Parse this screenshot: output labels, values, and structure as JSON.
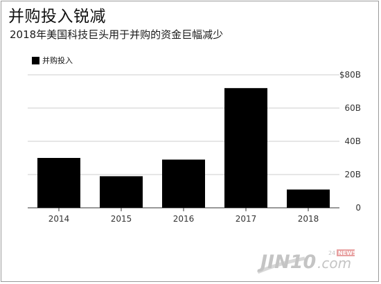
{
  "title": "并购投入锐减",
  "subtitle": "2018年美国科技巨头用于并购的资金巨幅减少",
  "legend": {
    "label": "并购投入",
    "color": "#000000"
  },
  "watermark": {
    "brand": "JIN10",
    "suffix": ".com",
    "tag_num": "24",
    "tag_word": "NEWS"
  },
  "chart_data": {
    "type": "bar",
    "categories": [
      "2014",
      "2015",
      "2016",
      "2017",
      "2018"
    ],
    "series": [
      {
        "name": "并购投入",
        "values": [
          30,
          19,
          29,
          72,
          11
        ]
      }
    ],
    "ylim": [
      0,
      80
    ],
    "yticks": [
      0,
      20,
      40,
      60,
      80
    ],
    "ytick_labels": [
      "0",
      "20B",
      "40B",
      "60B",
      "$80B"
    ],
    "y_axis_position": "right",
    "grid": true,
    "bar_color": "#000000",
    "grid_color": "#cccccc"
  }
}
